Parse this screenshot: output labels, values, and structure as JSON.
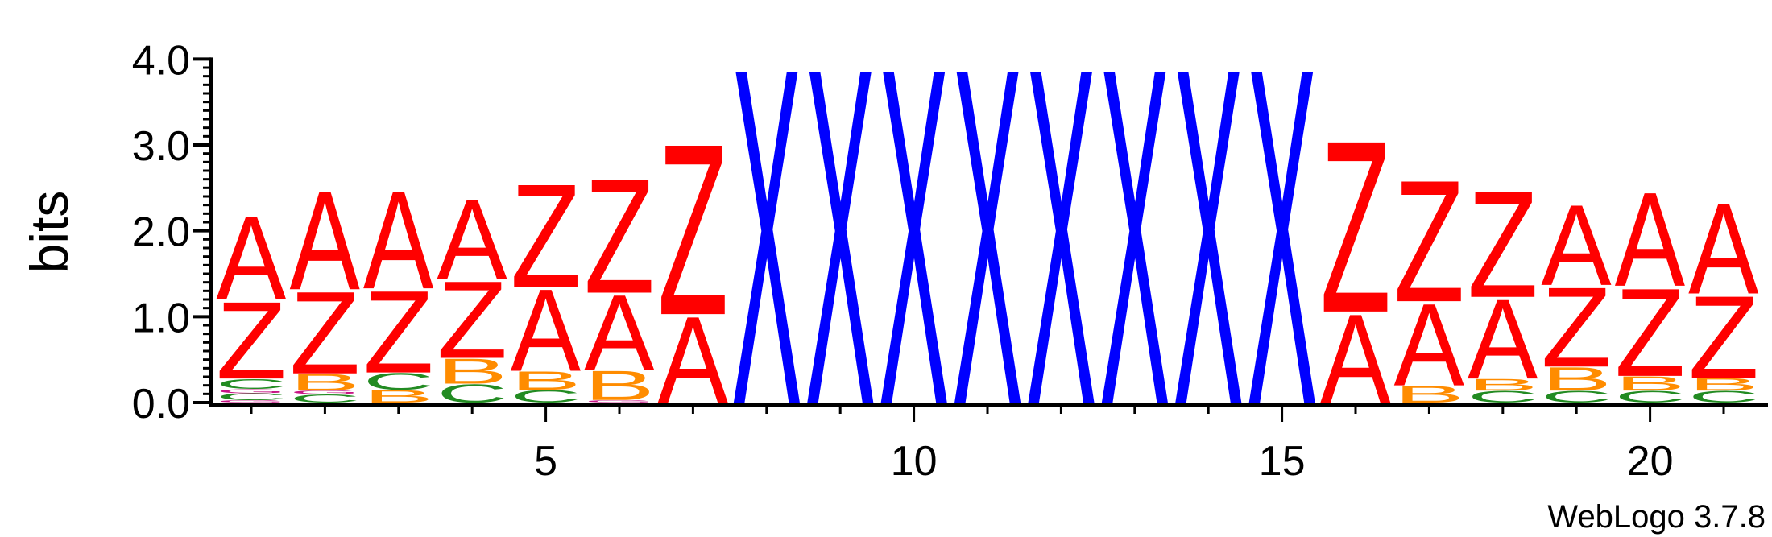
{
  "chart_data": {
    "type": "sequence-logo",
    "ylabel": "bits",
    "ylim": [
      0,
      4.2
    ],
    "y_ticks": [
      "0.0",
      "1.0",
      "2.0",
      "3.0",
      "4.0"
    ],
    "y_tick_values": [
      0,
      1,
      2,
      3,
      4
    ],
    "x_ticks": [
      "5",
      "10",
      "15",
      "20"
    ],
    "x_tick_values": [
      5,
      10,
      15,
      20
    ],
    "x_range": [
      0.5,
      21.5
    ],
    "credit": "WebLogo 3.7.8",
    "colors": {
      "A": "#ff0000",
      "Z": "#ff0000",
      "X": "#0000ff",
      "B": "#ff8c00",
      "C": "#228b22",
      "other": "#c71585"
    },
    "positions": [
      {
        "pos": 1,
        "stack": [
          {
            "letter": "other",
            "height": 0.03
          },
          {
            "letter": "C",
            "height": 0.08
          },
          {
            "letter": "other",
            "height": 0.05
          },
          {
            "letter": "C",
            "height": 0.12
          },
          {
            "letter": "Z",
            "height": 0.92
          },
          {
            "letter": "A",
            "height": 1.0
          }
        ]
      },
      {
        "pos": 2,
        "stack": [
          {
            "letter": "C",
            "height": 0.1
          },
          {
            "letter": "other",
            "height": 0.04
          },
          {
            "letter": "B",
            "height": 0.2
          },
          {
            "letter": "Z",
            "height": 0.98
          },
          {
            "letter": "A",
            "height": 1.18
          }
        ]
      },
      {
        "pos": 3,
        "stack": [
          {
            "letter": "B",
            "height": 0.15
          },
          {
            "letter": "C",
            "height": 0.2
          },
          {
            "letter": "Z",
            "height": 0.98
          },
          {
            "letter": "A",
            "height": 1.17
          }
        ]
      },
      {
        "pos": 4,
        "stack": [
          {
            "letter": "C",
            "height": 0.22
          },
          {
            "letter": "B",
            "height": 0.3
          },
          {
            "letter": "Z",
            "height": 0.92
          },
          {
            "letter": "A",
            "height": 0.95
          }
        ]
      },
      {
        "pos": 5,
        "stack": [
          {
            "letter": "C",
            "height": 0.15
          },
          {
            "letter": "B",
            "height": 0.22
          },
          {
            "letter": "A",
            "height": 0.98
          },
          {
            "letter": "Z",
            "height": 1.23
          }
        ]
      },
      {
        "pos": 6,
        "stack": [
          {
            "letter": "other",
            "height": 0.03
          },
          {
            "letter": "B",
            "height": 0.35
          },
          {
            "letter": "A",
            "height": 0.9
          },
          {
            "letter": "Z",
            "height": 1.37
          }
        ]
      },
      {
        "pos": 7,
        "stack": [
          {
            "letter": "A",
            "height": 1.03
          },
          {
            "letter": "Z",
            "height": 2.04
          }
        ]
      },
      {
        "pos": 8,
        "stack": [
          {
            "letter": "X",
            "height": 4.0
          }
        ]
      },
      {
        "pos": 9,
        "stack": [
          {
            "letter": "X",
            "height": 4.0
          }
        ]
      },
      {
        "pos": 10,
        "stack": [
          {
            "letter": "X",
            "height": 4.0
          }
        ]
      },
      {
        "pos": 11,
        "stack": [
          {
            "letter": "X",
            "height": 4.0
          }
        ]
      },
      {
        "pos": 12,
        "stack": [
          {
            "letter": "X",
            "height": 4.0
          }
        ]
      },
      {
        "pos": 13,
        "stack": [
          {
            "letter": "X",
            "height": 4.0
          }
        ]
      },
      {
        "pos": 14,
        "stack": [
          {
            "letter": "X",
            "height": 4.0
          }
        ]
      },
      {
        "pos": 15,
        "stack": [
          {
            "letter": "X",
            "height": 4.0
          }
        ]
      },
      {
        "pos": 16,
        "stack": [
          {
            "letter": "A",
            "height": 1.06
          },
          {
            "letter": "Z",
            "height": 2.05
          }
        ]
      },
      {
        "pos": 17,
        "stack": [
          {
            "letter": "B",
            "height": 0.2
          },
          {
            "letter": "A",
            "height": 0.98
          },
          {
            "letter": "Z",
            "height": 1.45
          }
        ]
      },
      {
        "pos": 18,
        "stack": [
          {
            "letter": "C",
            "height": 0.14
          },
          {
            "letter": "B",
            "height": 0.14
          },
          {
            "letter": "A",
            "height": 0.95
          },
          {
            "letter": "Z",
            "height": 1.27
          }
        ]
      },
      {
        "pos": 19,
        "stack": [
          {
            "letter": "C",
            "height": 0.14
          },
          {
            "letter": "B",
            "height": 0.28
          },
          {
            "letter": "Z",
            "height": 0.95
          },
          {
            "letter": "A",
            "height": 0.96
          }
        ]
      },
      {
        "pos": 20,
        "stack": [
          {
            "letter": "C",
            "height": 0.14
          },
          {
            "letter": "B",
            "height": 0.17
          },
          {
            "letter": "Z",
            "height": 1.05
          },
          {
            "letter": "A",
            "height": 1.12
          }
        ]
      },
      {
        "pos": 21,
        "stack": [
          {
            "letter": "C",
            "height": 0.14
          },
          {
            "letter": "B",
            "height": 0.15
          },
          {
            "letter": "Z",
            "height": 0.98
          },
          {
            "letter": "A",
            "height": 1.08
          }
        ]
      }
    ]
  }
}
